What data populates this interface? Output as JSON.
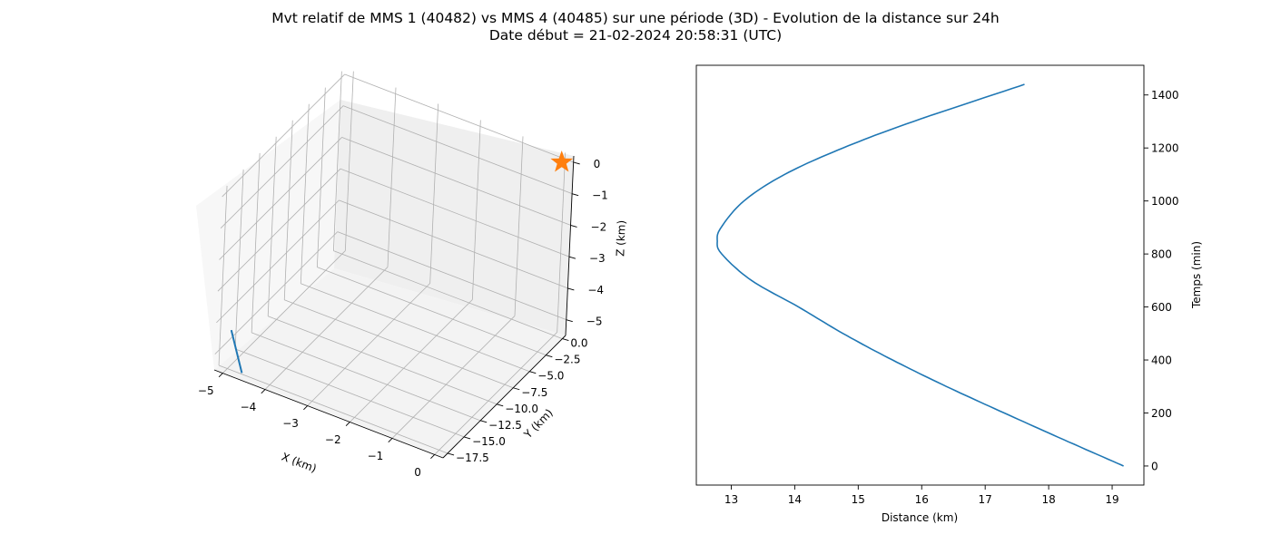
{
  "title_lines": [
    "Mvt relatif de MMS 1 (40482) vs MMS 4 (40485) sur une période (3D) - Evolution de la distance sur 24h",
    "Date début = 21-02-2024 20:58:31 (UTC)"
  ],
  "chart_data": [
    {
      "type": "line3d",
      "xlabel": "X (km)",
      "ylabel": "Y (km)",
      "zlabel": "Z (km)",
      "xlim": [
        -5.2,
        0.2
      ],
      "ylim": [
        -18.2,
        0.5
      ],
      "zlim": [
        -5.5,
        0.2
      ],
      "x_ticks": [
        "−5",
        "−4",
        "−3",
        "−2",
        "−1",
        "0"
      ],
      "y_ticks": [
        "0.0",
        "−2.5",
        "−5.0",
        "−7.5",
        "−10.0",
        "−12.5",
        "−15.0",
        "−17.5"
      ],
      "z_ticks": [
        "0",
        "−1",
        "−2",
        "−3",
        "−4",
        "−5"
      ],
      "grid": true,
      "series": [
        {
          "kind": "line",
          "color": "#1f77b4",
          "x": [
            -5.05,
            -4.6
          ],
          "y": [
            -16.8,
            -17.9
          ],
          "z": [
            -4.45,
            -5.35
          ]
        },
        {
          "kind": "star-marker",
          "color": "#ff7f0e",
          "x": [
            0
          ],
          "y": [
            0
          ],
          "z": [
            0
          ]
        }
      ]
    },
    {
      "type": "line",
      "xlabel": "Distance (km)",
      "ylabel": "Temps (min)",
      "xlim": [
        12.45,
        19.5
      ],
      "ylim": [
        -72,
        1512
      ],
      "x_ticks": [
        13,
        14,
        15,
        16,
        17,
        18,
        19
      ],
      "y_ticks": [
        0,
        200,
        400,
        600,
        800,
        1000,
        1200,
        1400
      ],
      "y_axis_side": "right",
      "series": [
        {
          "color": "#1f77b4",
          "time_min": [
            0,
            100,
            200,
            300,
            400,
            500,
            600,
            700,
            800,
            850,
            900,
            1000,
            1100,
            1200,
            1300,
            1440
          ],
          "distance_km": [
            19.18,
            18.23,
            17.3,
            16.39,
            15.54,
            14.76,
            14.06,
            13.32,
            12.85,
            12.78,
            12.84,
            13.2,
            13.84,
            14.76,
            15.87,
            17.62
          ]
        }
      ]
    }
  ]
}
